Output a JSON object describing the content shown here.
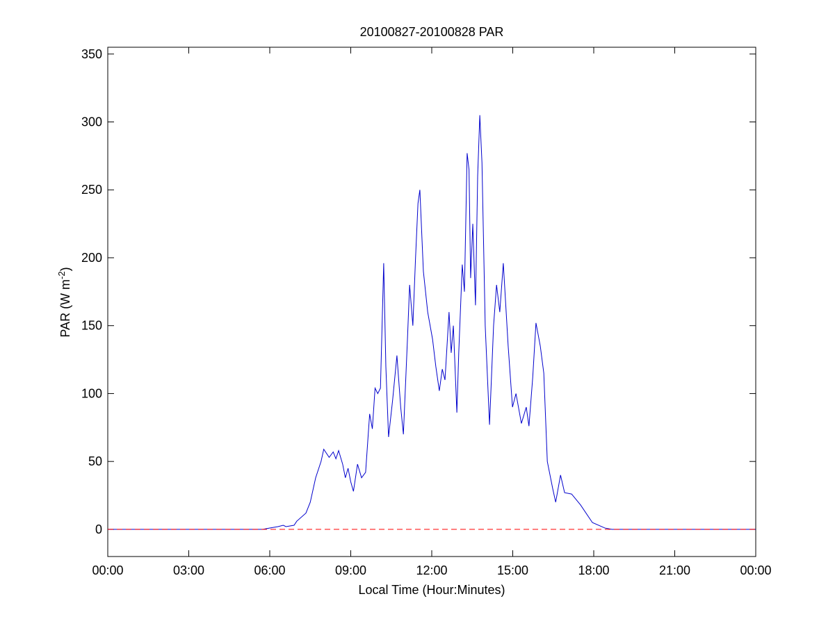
{
  "chart_data": {
    "type": "line",
    "title": "20100827-20100828 PAR",
    "xlabel": "Local Time (Hour:Minutes)",
    "ylabel": "PAR (W m",
    "ylabel_sup": "-2",
    "ylabel_end": ")",
    "xlim": [
      0,
      24
    ],
    "ylim": [
      -20,
      355
    ],
    "xticks": [
      {
        "value": 0,
        "label": "00:00"
      },
      {
        "value": 3,
        "label": "03:00"
      },
      {
        "value": 6,
        "label": "06:00"
      },
      {
        "value": 9,
        "label": "09:00"
      },
      {
        "value": 12,
        "label": "12:00"
      },
      {
        "value": 15,
        "label": "15:00"
      },
      {
        "value": 18,
        "label": "18:00"
      },
      {
        "value": 21,
        "label": "21:00"
      },
      {
        "value": 24,
        "label": "00:00"
      }
    ],
    "yticks": [
      0,
      50,
      100,
      150,
      200,
      250,
      300,
      350
    ],
    "grid": false,
    "reference_line": {
      "value": 0,
      "color": "#ff0000",
      "dashed": true
    },
    "series": [
      {
        "color": "#0000cc",
        "x": [
          0,
          5.74,
          6.0,
          6.3,
          6.5,
          6.6,
          6.9,
          7.0,
          7.34,
          7.5,
          7.7,
          7.9,
          8.0,
          8.2,
          8.35,
          8.45,
          8.55,
          8.7,
          8.8,
          8.9,
          9.0,
          9.1,
          9.25,
          9.4,
          9.55,
          9.7,
          9.8,
          9.9,
          10.0,
          10.1,
          10.22,
          10.3,
          10.4,
          10.55,
          10.71,
          10.85,
          10.95,
          11.1,
          11.18,
          11.3,
          11.4,
          11.49,
          11.56,
          11.69,
          11.85,
          12.03,
          12.15,
          12.28,
          12.39,
          12.49,
          12.64,
          12.72,
          12.8,
          12.93,
          13.0,
          13.13,
          13.21,
          13.31,
          13.38,
          13.44,
          13.52,
          13.62,
          13.7,
          13.78,
          13.86,
          13.98,
          14.14,
          14.29,
          14.4,
          14.52,
          14.65,
          14.83,
          14.99,
          15.12,
          15.32,
          15.5,
          15.6,
          15.74,
          15.86,
          16.02,
          16.15,
          16.28,
          16.48,
          16.59,
          16.77,
          16.92,
          17.18,
          17.51,
          17.95,
          18.41,
          18.67,
          24
        ],
        "values": [
          0,
          0,
          1,
          2,
          3,
          2,
          3,
          6,
          12,
          20,
          38,
          50,
          59,
          53,
          57,
          52,
          58,
          48,
          38,
          45,
          35,
          28,
          48,
          38,
          42,
          85,
          74,
          104,
          100,
          104,
          196,
          120,
          68,
          95,
          128,
          90,
          70,
          140,
          180,
          150,
          200,
          240,
          250,
          190,
          160,
          140,
          120,
          102,
          118,
          110,
          160,
          130,
          150,
          86,
          130,
          195,
          175,
          277,
          265,
          185,
          225,
          165,
          260,
          305,
          270,
          150,
          77,
          150,
          180,
          160,
          196,
          135,
          90,
          100,
          78,
          90,
          76,
          112,
          152,
          135,
          115,
          50,
          30,
          20,
          40,
          27,
          26,
          18,
          5,
          1,
          0,
          0
        ]
      }
    ]
  }
}
